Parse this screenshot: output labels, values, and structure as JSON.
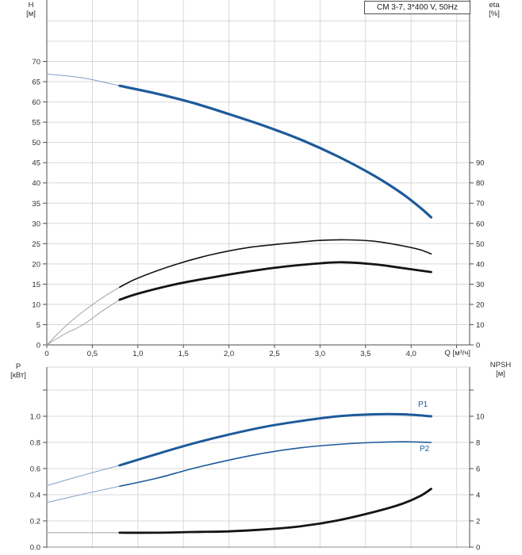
{
  "title_box": "CM 3-7, 3*400 V, 50Hz",
  "labels": {
    "h_axis": "H\n[м]",
    "eta_axis": "eta\n[%]",
    "p_axis": "P\n[кВт]",
    "npsh_axis": "NPSH\n[м]",
    "q_axis": "Q [м³/ч]",
    "p1": "P1",
    "p2": "P2"
  },
  "colors": {
    "curve_blue": "#1d5a9b",
    "curve_black": "#141414",
    "lead_blue": "#7f9fc7",
    "lead_gray": "#a0a0a0",
    "grid": "#d8d8d8",
    "axis": "#4d4e50",
    "text": "#2d2d2d"
  },
  "chart_data": [
    {
      "type": "line",
      "title": "CM 3-7, 3*400 V, 50Hz",
      "x_axis": {
        "label": "Q [м³/ч]",
        "min": 0,
        "max": 4.64,
        "ticks": [
          {
            "v": 0,
            "label": "0"
          },
          {
            "v": 0.5,
            "label": "0,5"
          },
          {
            "v": 1,
            "label": "1,0"
          },
          {
            "v": 1.5,
            "label": "1,5"
          },
          {
            "v": 2,
            "label": "2,0"
          },
          {
            "v": 2.5,
            "label": "2,5"
          },
          {
            "v": 3,
            "label": "3,0"
          },
          {
            "v": 3.5,
            "label": "3,5"
          },
          {
            "v": 4,
            "label": "4,0"
          },
          {
            "v": 4.5,
            "label": ""
          }
        ]
      },
      "y_left": {
        "label": "H [м]",
        "min": 0,
        "max": 85,
        "ticks": [
          {
            "v": 0,
            "label": "0"
          },
          {
            "v": 5,
            "label": "5"
          },
          {
            "v": 10,
            "label": "10"
          },
          {
            "v": 15,
            "label": "15"
          },
          {
            "v": 20,
            "label": "20"
          },
          {
            "v": 25,
            "label": "25"
          },
          {
            "v": 30,
            "label": "30"
          },
          {
            "v": 35,
            "label": "35"
          },
          {
            "v": 40,
            "label": "40"
          },
          {
            "v": 45,
            "label": "45"
          },
          {
            "v": 50,
            "label": "50"
          },
          {
            "v": 55,
            "label": "55"
          },
          {
            "v": 60,
            "label": "60"
          },
          {
            "v": 65,
            "label": "65"
          },
          {
            "v": 70,
            "label": "70"
          }
        ]
      },
      "y_right": {
        "label": "eta [%]",
        "min": 0,
        "max": 168,
        "ticks": [
          {
            "v": 0,
            "label": "0"
          },
          {
            "v": 10,
            "label": "10"
          },
          {
            "v": 20,
            "label": "20"
          },
          {
            "v": 30,
            "label": "30"
          },
          {
            "v": 40,
            "label": "40"
          },
          {
            "v": 50,
            "label": "50"
          },
          {
            "v": 60,
            "label": "60"
          },
          {
            "v": 70,
            "label": "70"
          },
          {
            "v": 80,
            "label": "80"
          },
          {
            "v": 90,
            "label": "90"
          }
        ]
      },
      "h_grid": {
        "axis": "H",
        "values": [
          5,
          10,
          15,
          20,
          25,
          30,
          35,
          40,
          45,
          50,
          55,
          60,
          65,
          70,
          75,
          80
        ]
      },
      "series": [
        {
          "name": "H",
          "axis": "H",
          "color": "blue",
          "width": 3.2,
          "lead_split": 0.8,
          "points": [
            [
              0,
              66.9
            ],
            [
              0.4,
              65.9
            ],
            [
              0.8,
              64.0
            ],
            [
              1.2,
              62.1
            ],
            [
              1.6,
              59.8
            ],
            [
              2.0,
              57.0
            ],
            [
              2.4,
              54.0
            ],
            [
              2.8,
              50.6
            ],
            [
              3.2,
              46.5
            ],
            [
              3.6,
              41.7
            ],
            [
              3.9,
              37.4
            ],
            [
              4.1,
              33.9
            ],
            [
              4.22,
              31.5
            ]
          ]
        },
        {
          "name": "eta-pump",
          "axis": "eta",
          "color": "black",
          "width": 1.6,
          "lead_split": 0.8,
          "points": [
            [
              0,
              0
            ],
            [
              0.2,
              9
            ],
            [
              0.4,
              16.5
            ],
            [
              0.6,
              23
            ],
            [
              0.8,
              28.5
            ],
            [
              1.0,
              33
            ],
            [
              1.4,
              39.5
            ],
            [
              1.8,
              44.5
            ],
            [
              2.2,
              48
            ],
            [
              2.6,
              50
            ],
            [
              3.0,
              51.6
            ],
            [
              3.3,
              51.9
            ],
            [
              3.6,
              51.2
            ],
            [
              3.9,
              49
            ],
            [
              4.1,
              47
            ],
            [
              4.22,
              44.9
            ]
          ]
        },
        {
          "name": "eta-pump-motor",
          "axis": "eta",
          "color": "black",
          "width": 2.8,
          "lead_split": 0.8,
          "points": [
            [
              0,
              0
            ],
            [
              0.2,
              5.5
            ],
            [
              0.4,
              10
            ],
            [
              0.6,
              16.5
            ],
            [
              0.8,
              22.3
            ],
            [
              1.0,
              25.3
            ],
            [
              1.4,
              29.8
            ],
            [
              1.8,
              33.2
            ],
            [
              2.2,
              36.2
            ],
            [
              2.6,
              38.6
            ],
            [
              3.0,
              40.3
            ],
            [
              3.25,
              40.8
            ],
            [
              3.6,
              39.8
            ],
            [
              3.9,
              38
            ],
            [
              4.22,
              36
            ]
          ]
        }
      ]
    },
    {
      "type": "line",
      "x_axis": {
        "min": 0,
        "max": 4.64,
        "ticks": []
      },
      "y_left": {
        "label": "P [кВт]",
        "min": 0,
        "max": 1.375,
        "ticks": [
          {
            "v": 0,
            "label": "0.0"
          },
          {
            "v": 0.2,
            "label": "0.2"
          },
          {
            "v": 0.4,
            "label": "0.4"
          },
          {
            "v": 0.6,
            "label": "0.6"
          },
          {
            "v": 0.8,
            "label": "0.8"
          },
          {
            "v": 1.0,
            "label": "1.0"
          },
          {
            "v": 1.2,
            "label": ""
          }
        ]
      },
      "y_right": {
        "label": "NPSH [м]",
        "min": 0,
        "max": 13.75,
        "ticks": [
          {
            "v": 0,
            "label": "0"
          },
          {
            "v": 2,
            "label": "2"
          },
          {
            "v": 4,
            "label": "4"
          },
          {
            "v": 6,
            "label": "6"
          },
          {
            "v": 8,
            "label": "8"
          },
          {
            "v": 10,
            "label": "10"
          },
          {
            "v": 12,
            "label": ""
          }
        ]
      },
      "h_grid": {
        "axis": "NPSH",
        "values": [
          2,
          4,
          6,
          8,
          10,
          12
        ]
      },
      "series": [
        {
          "name": "P1",
          "axis": "P",
          "color": "blue",
          "width": 3.0,
          "lead_split": 0.8,
          "points": [
            [
              0,
              0.47
            ],
            [
              0.4,
              0.55
            ],
            [
              0.8,
              0.625
            ],
            [
              1.2,
              0.71
            ],
            [
              1.6,
              0.79
            ],
            [
              2.0,
              0.86
            ],
            [
              2.4,
              0.92
            ],
            [
              2.8,
              0.965
            ],
            [
              3.2,
              1.0
            ],
            [
              3.6,
              1.015
            ],
            [
              3.9,
              1.015
            ],
            [
              4.22,
              1.0
            ]
          ]
        },
        {
          "name": "P2",
          "axis": "P",
          "color": "blue",
          "width": 1.6,
          "lead_split": 0.8,
          "points": [
            [
              0,
              0.34
            ],
            [
              0.4,
              0.405
            ],
            [
              0.8,
              0.465
            ],
            [
              1.2,
              0.525
            ],
            [
              1.6,
              0.6
            ],
            [
              2.0,
              0.665
            ],
            [
              2.4,
              0.72
            ],
            [
              2.8,
              0.76
            ],
            [
              3.2,
              0.785
            ],
            [
              3.6,
              0.8
            ],
            [
              3.9,
              0.805
            ],
            [
              4.22,
              0.8
            ]
          ]
        },
        {
          "name": "NPSH",
          "axis": "NPSH",
          "color": "black",
          "width": 2.8,
          "lead_split": 0.8,
          "points": [
            [
              0,
              1.1
            ],
            [
              0.4,
              1.1
            ],
            [
              0.8,
              1.1
            ],
            [
              1.2,
              1.1
            ],
            [
              1.6,
              1.15
            ],
            [
              2.0,
              1.2
            ],
            [
              2.4,
              1.35
            ],
            [
              2.8,
              1.6
            ],
            [
              3.2,
              2.05
            ],
            [
              3.6,
              2.7
            ],
            [
              3.9,
              3.3
            ],
            [
              4.1,
              3.9
            ],
            [
              4.22,
              4.45
            ]
          ]
        }
      ]
    }
  ]
}
